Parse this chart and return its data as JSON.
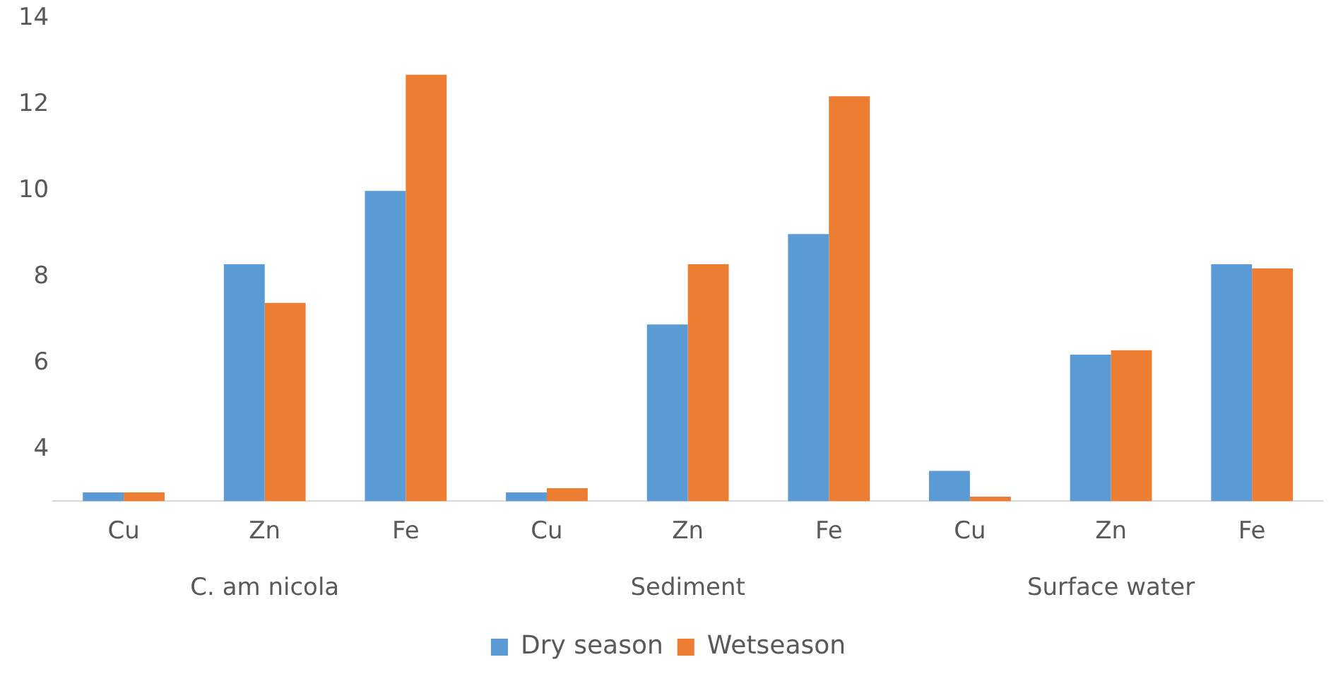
{
  "chart_data": {
    "type": "bar",
    "categories": [
      "Cu",
      "Zn",
      "Fe",
      "Cu",
      "Zn",
      "Fe",
      "Cu",
      "Zn",
      "Fe"
    ],
    "series": [
      {
        "name": "Dry season",
        "color": "#5b9bd5",
        "values": [
          3.0,
          8.3,
          10.0,
          3.0,
          6.9,
          9.0,
          3.5,
          6.2,
          8.3
        ]
      },
      {
        "name": "Wetseason",
        "color": "#ed7d31",
        "values": [
          3.0,
          7.4,
          12.7,
          3.1,
          8.3,
          12.2,
          2.9,
          6.3,
          8.2
        ]
      }
    ],
    "annotations": [
      "C. am nicola",
      "Sediment",
      "Surface water"
    ],
    "ylim": [
      2.8,
      14
    ],
    "yticks": [
      4,
      6,
      8,
      10,
      12,
      14
    ],
    "grid": false,
    "legend": "bottom"
  }
}
